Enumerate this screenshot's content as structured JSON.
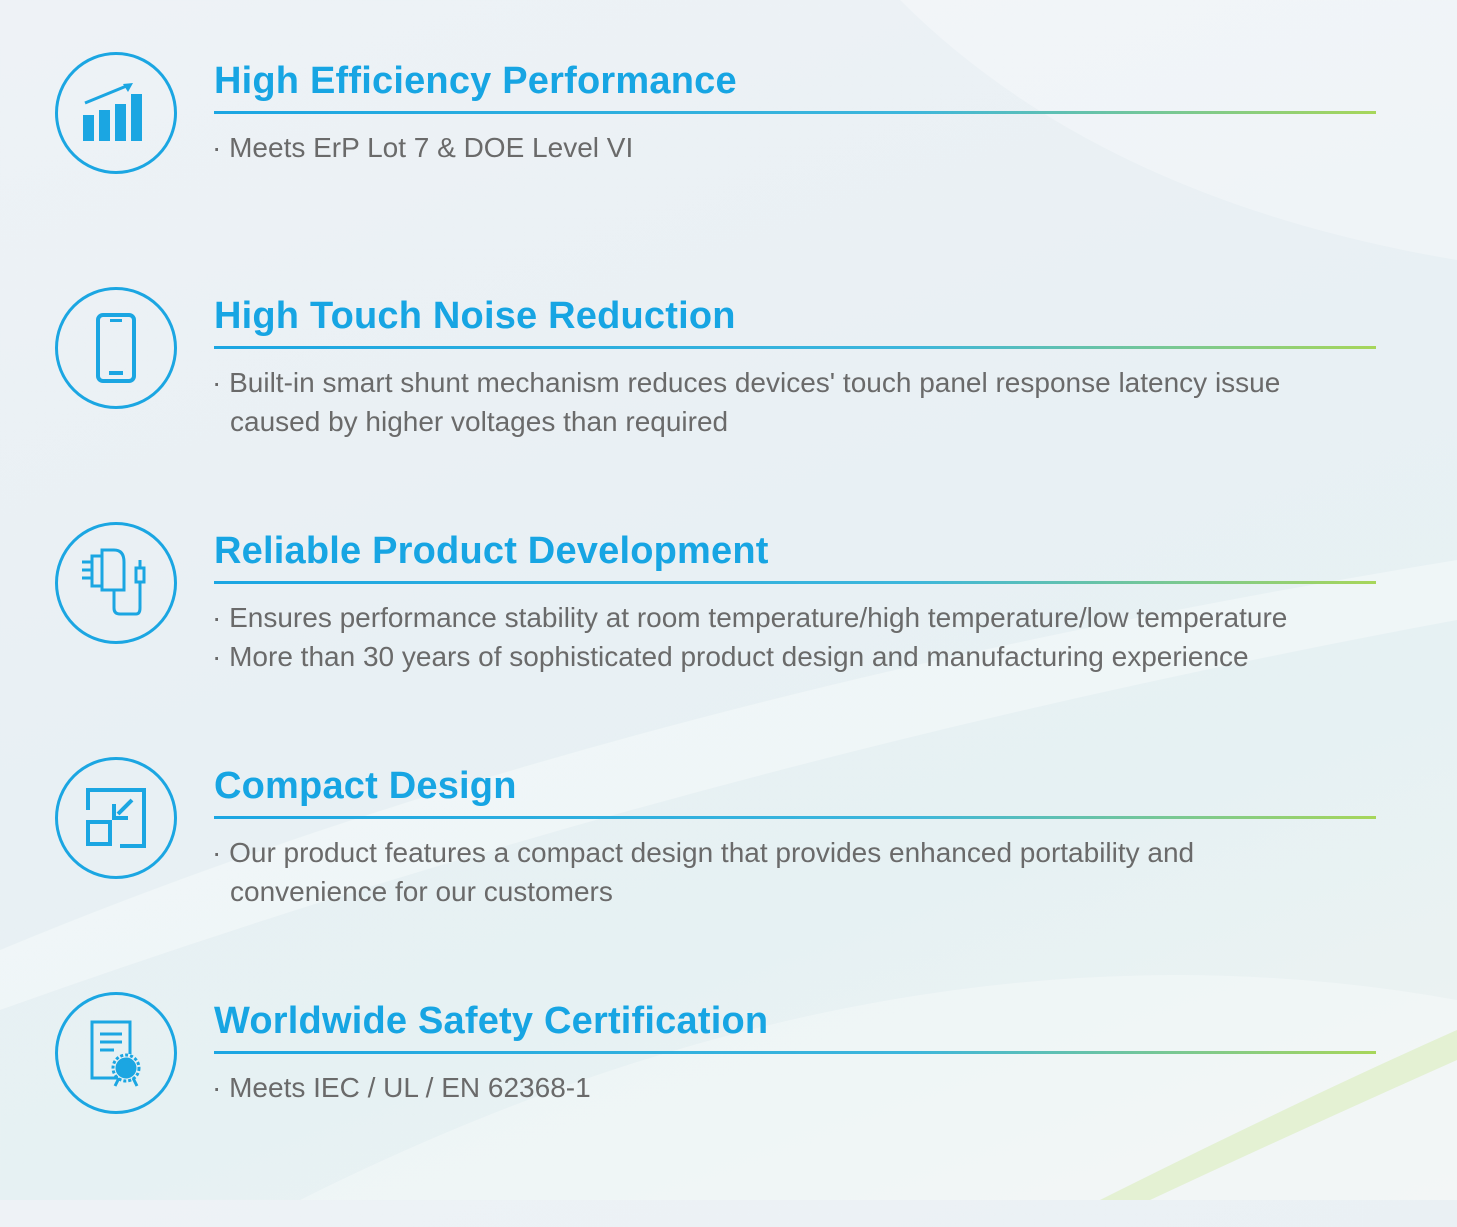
{
  "colors": {
    "accent": "#17a5e3",
    "rule_end": "#a7d65a",
    "text": "#6a6a6a"
  },
  "features": [
    {
      "icon": "bar-chart-growth-icon",
      "title": "High Efficiency Performance",
      "lines": [
        "· Meets ErP Lot 7 & DOE Level VI"
      ]
    },
    {
      "icon": "smartphone-icon",
      "title": "High Touch Noise Reduction",
      "lines": [
        "· Built-in smart shunt mechanism reduces devices' touch panel response latency issue",
        "caused by higher voltages than required"
      ]
    },
    {
      "icon": "charger-plug-icon",
      "title": "Reliable Product Development",
      "lines": [
        "· Ensures performance stability at room temperature/high temperature/low temperature",
        "· More than 30 years of sophisticated product  design and manufacturing experience"
      ]
    },
    {
      "icon": "compact-resize-icon",
      "title": "Compact Design",
      "lines": [
        "· Our product features a compact design that provides enhanced portability and",
        "convenience for our customers"
      ]
    },
    {
      "icon": "certificate-icon",
      "title": "Worldwide Safety Certification",
      "lines": [
        "· Meets IEC / UL / EN 62368-1"
      ]
    }
  ]
}
